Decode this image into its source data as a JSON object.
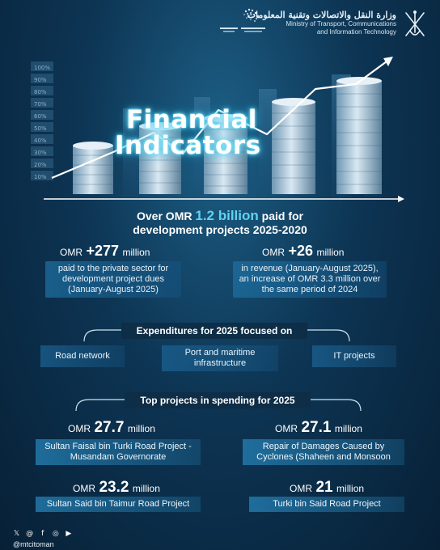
{
  "header": {
    "ministry_ar": "وزارة النقل والاتصالات وتقنية المعلومات",
    "ministry_en_line1": "Ministry of Transport, Communications",
    "ministry_en_line2": "and Information Technology",
    "vision_logo_icon": "oman-vision-logo",
    "emblem_icon": "oman-national-emblem"
  },
  "hero": {
    "title_line1": "Financial",
    "title_line2": "Indicators",
    "scale_labels": [
      "100%",
      "90%",
      "80%",
      "70%",
      "60%",
      "50%",
      "40%",
      "30%",
      "20%",
      "10%"
    ]
  },
  "headline": {
    "prefix": "Over OMR",
    "highlight": "1.2 billion",
    "suffix": "paid for",
    "line2": "development projects 2025-2020"
  },
  "stats": [
    {
      "currency": "OMR",
      "value": "+277",
      "unit": "million",
      "description": "paid to the private sector for development project dues (January-August 2025)"
    },
    {
      "currency": "OMR",
      "value": "+26",
      "unit": "million",
      "description": "in revenue (January-August 2025), an increase of OMR 3.3 million over the same period of 2024"
    }
  ],
  "expenditures": {
    "label": "Expenditures for 2025 focused on",
    "items": [
      "Road network",
      "Port and maritime infrastructure",
      "IT projects"
    ]
  },
  "top_projects": {
    "label": "Top projects in spending for 2025",
    "items": [
      {
        "currency": "OMR",
        "value": "27.7",
        "unit": "million",
        "name": "Sultan Faisal bin Turki Road Project - Musandam Governorate"
      },
      {
        "currency": "OMR",
        "value": "27.1",
        "unit": "million",
        "name": "Repair of Damages Caused by Cyclones (Shaheen and Monsoon"
      },
      {
        "currency": "OMR",
        "value": "23.2",
        "unit": "million",
        "name": "Sultan Said bin Taimur Road Project"
      },
      {
        "currency": "OMR",
        "value": "21",
        "unit": "million",
        "name": "Turki bin Said Road Project"
      }
    ]
  },
  "footer": {
    "social_icons": [
      "x-icon",
      "threads-icon",
      "facebook-icon",
      "instagram-icon",
      "youtube-icon"
    ],
    "handle": "@mtcitoman"
  },
  "colors": {
    "accent": "#5fd3f2",
    "background_dark": "#072036",
    "background_mid": "#1d5f86"
  }
}
